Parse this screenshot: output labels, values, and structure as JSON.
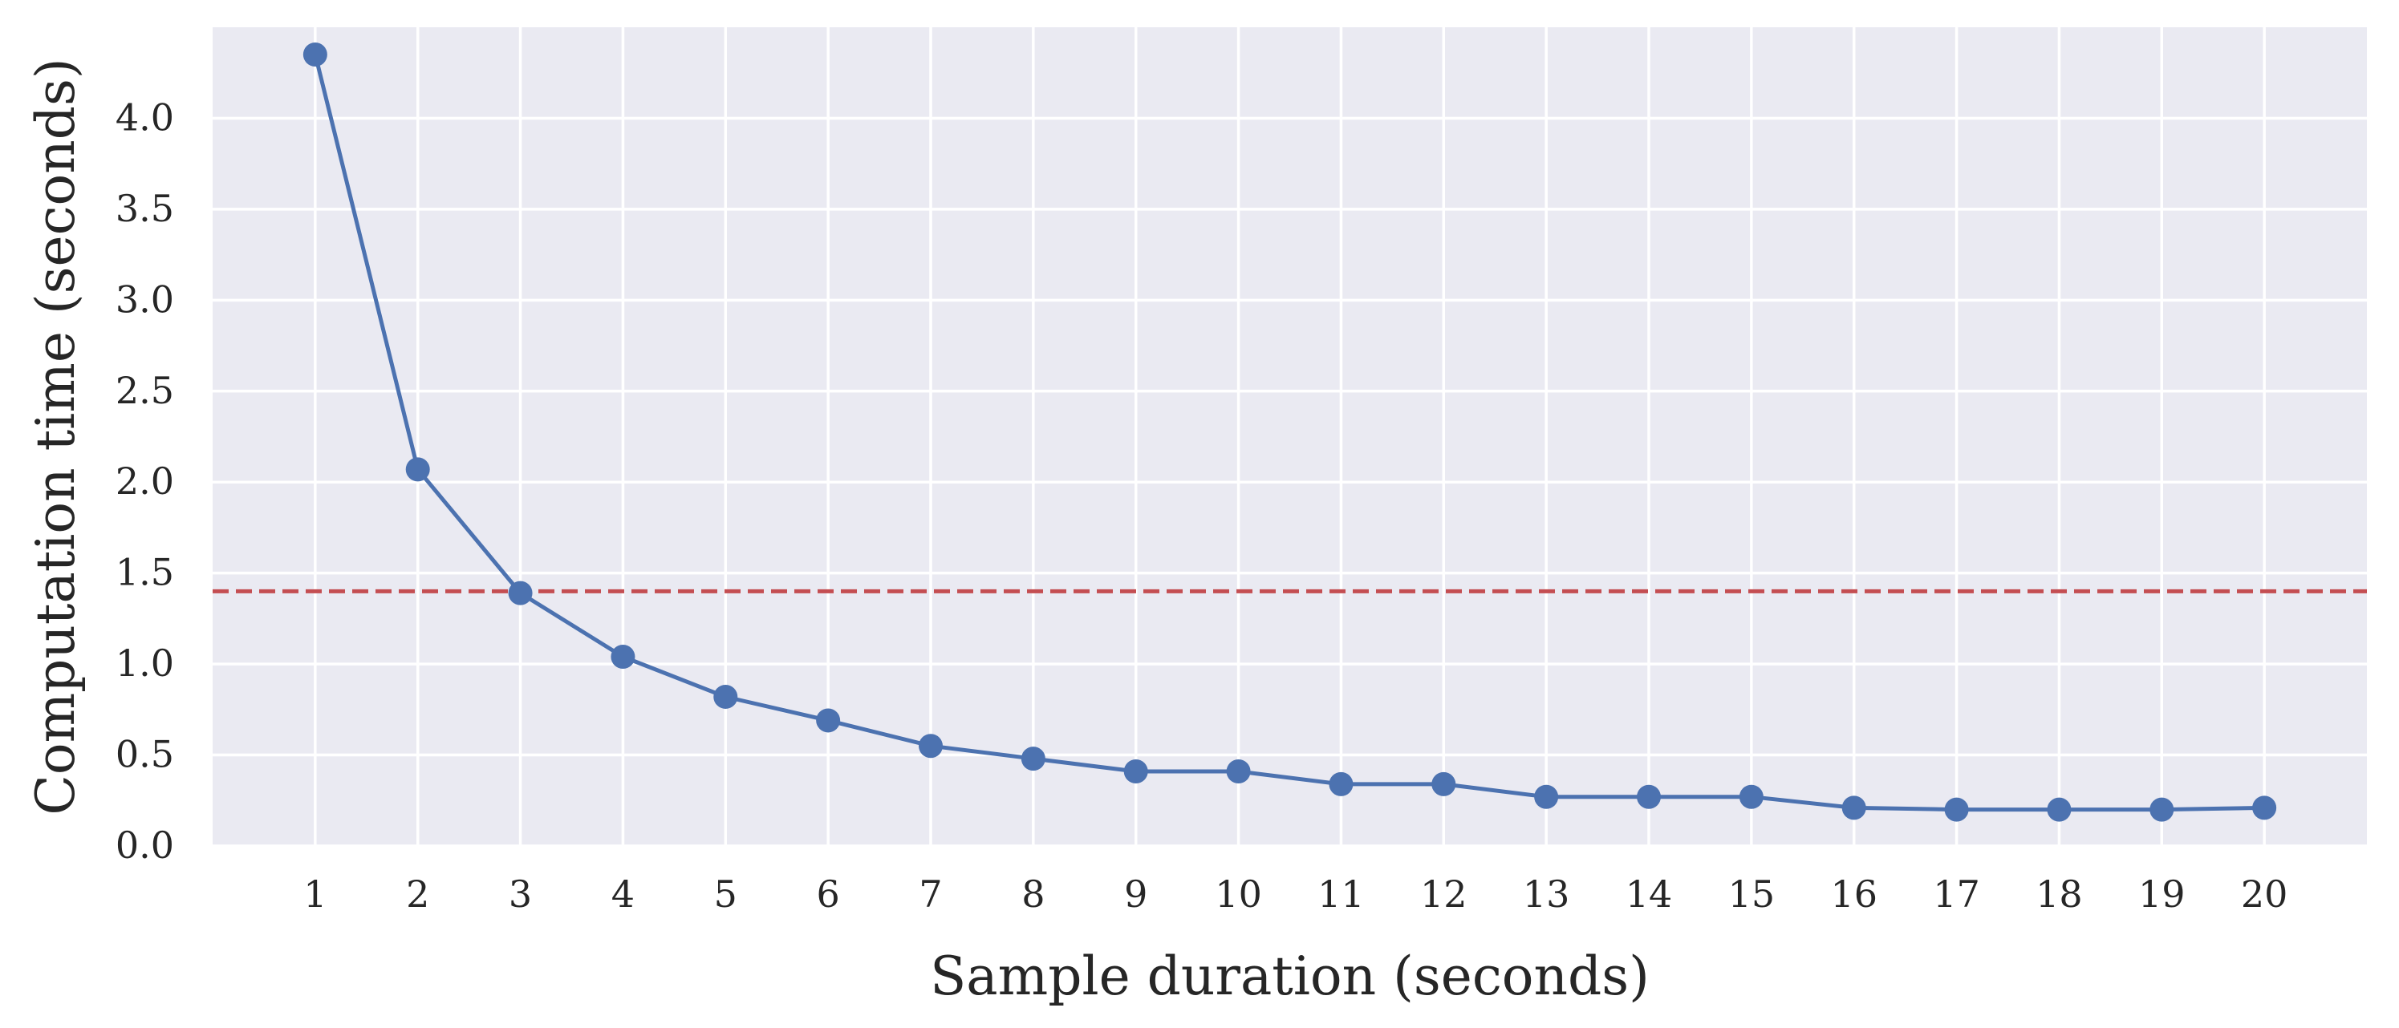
{
  "chart_data": {
    "type": "line",
    "title": "",
    "xlabel": "Sample duration (seconds)",
    "ylabel": "Computation time (seconds)",
    "categories": [
      "1",
      "2",
      "3",
      "4",
      "5",
      "6",
      "7",
      "8",
      "9",
      "10",
      "11",
      "12",
      "13",
      "14",
      "15",
      "16",
      "17",
      "18",
      "19",
      "20"
    ],
    "series": [
      {
        "name": "Computation time",
        "color": "#4C72B0",
        "marker": "circle",
        "values": [
          4.35,
          2.07,
          1.39,
          1.04,
          0.82,
          0.69,
          0.55,
          0.48,
          0.41,
          0.41,
          0.34,
          0.34,
          0.27,
          0.27,
          0.27,
          0.21,
          0.2,
          0.2,
          0.2,
          0.21
        ]
      }
    ],
    "reference_line": {
      "value": 1.4,
      "color": "#C44E52",
      "style": "dashed"
    },
    "xlim": [
      0,
      21
    ],
    "ylim": [
      0,
      4.5
    ],
    "yticks": [
      0.0,
      0.5,
      1.0,
      1.5,
      2.0,
      2.5,
      3.0,
      3.5,
      4.0
    ],
    "ytick_labels": [
      "0.0",
      "0.5",
      "1.0",
      "1.5",
      "2.0",
      "2.5",
      "3.0",
      "3.5",
      "4.0"
    ],
    "background_color": "#EAEAF2",
    "grid": true,
    "grid_color": "#FFFFFF"
  }
}
